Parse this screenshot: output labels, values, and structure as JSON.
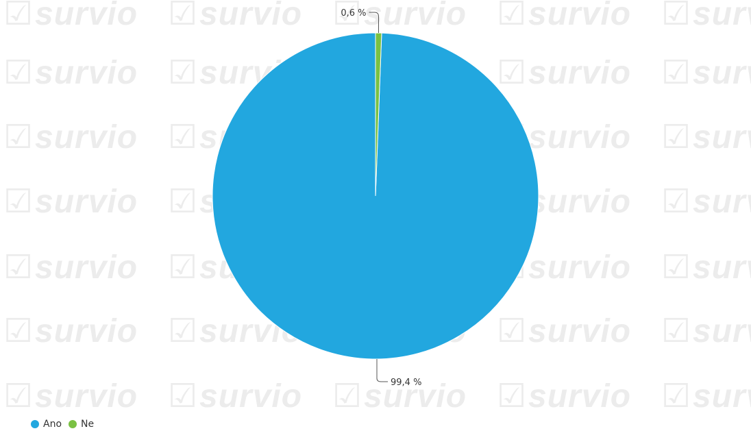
{
  "watermark": {
    "text": "survio"
  },
  "chart_data": {
    "type": "pie",
    "categories": [
      "Ano",
      "Ne"
    ],
    "values": [
      99.4,
      0.6
    ],
    "labels": [
      "99,4 %",
      "0,6 %"
    ],
    "colors": [
      "#22a7df",
      "#7ac143"
    ],
    "legend_placement": "bottom-left"
  }
}
